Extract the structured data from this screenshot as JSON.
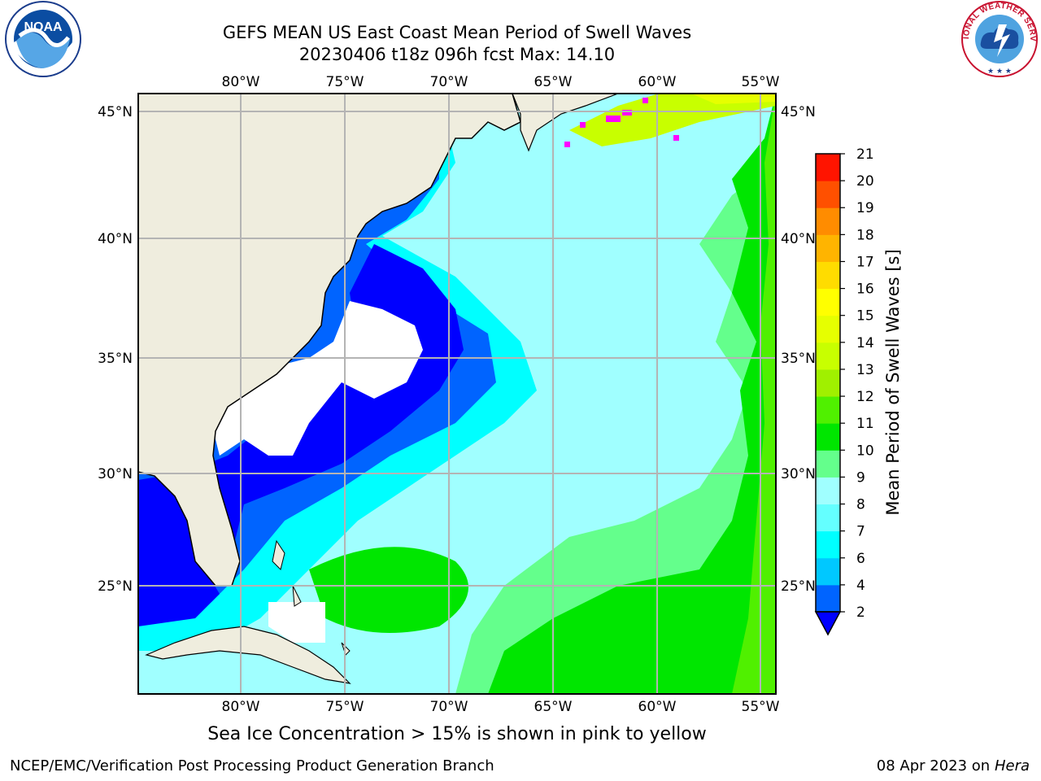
{
  "title": {
    "line1": "GEFS MEAN US East Coast Mean Period of Swell Waves",
    "line2": "20230406 t18z 096h fcst   Max: 14.10"
  },
  "map": {
    "lon_labels": [
      "80°W",
      "75°W",
      "70°W",
      "65°W",
      "60°W",
      "55°W"
    ],
    "lat_labels": [
      "45°N",
      "40°N",
      "35°N",
      "30°N",
      "25°N"
    ]
  },
  "colorbar": {
    "label": "Mean Period of Swell Waves [s]",
    "ticks": [
      "2",
      "4",
      "6",
      "7",
      "8",
      "9",
      "10",
      "11",
      "12",
      "13",
      "14",
      "15",
      "16",
      "17",
      "18",
      "19",
      "20",
      "21"
    ],
    "colors": [
      "#0064ff",
      "#00c8ff",
      "#00ffff",
      "#64ffff",
      "#a0ffff",
      "#64ff8c",
      "#00e600",
      "#50f000",
      "#a0f000",
      "#c8ff00",
      "#e6ff00",
      "#ffff00",
      "#ffdc00",
      "#ffb400",
      "#ff8c00",
      "#ff5000",
      "#ff1400"
    ],
    "extend_color": "#0000ff"
  },
  "colors": {
    "land": "#efedde",
    "calm_white": "#ffffff",
    "deep_blue": "#0000ff",
    "blue": "#0064ff",
    "cyan": "#00ffff",
    "light_cyan": "#a0ffff",
    "pale_green": "#64ff8c",
    "green": "#00e600",
    "yellow_green": "#c8ff00",
    "sea_ice_pink": "#ff00ff",
    "grid": "#b4b4b4"
  },
  "bottom_note": "Sea Ice Concentration > 15% is shown in pink to yellow",
  "footer": {
    "left": "NCEP/EMC/Verification Post Processing Product Generation Branch",
    "date": "08 Apr 2023 on",
    "machine": "Hera"
  },
  "logos": {
    "noaa": "NOAA",
    "nws": "NATIONAL WEATHER SERVICE"
  }
}
